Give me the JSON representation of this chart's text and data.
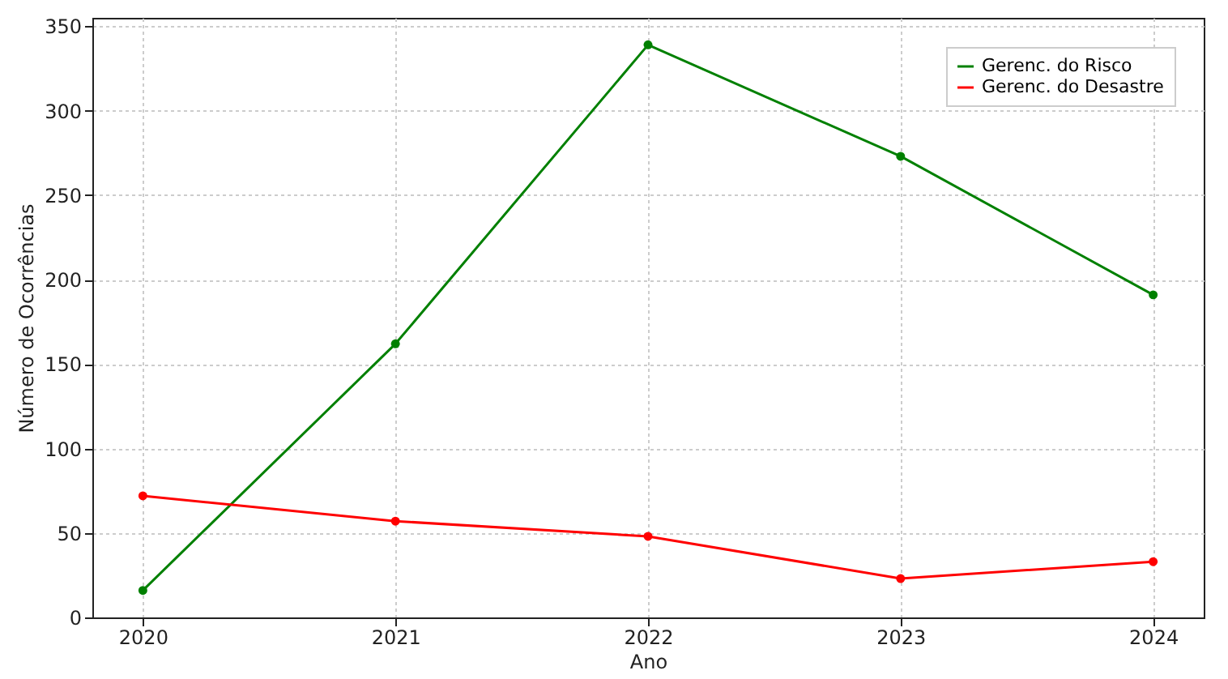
{
  "chart_data": {
    "type": "line",
    "xlabel": "Ano",
    "ylabel": "Número de Ocorrências",
    "x": [
      2020,
      2021,
      2022,
      2023,
      2024
    ],
    "series": [
      {
        "name": "Gerenc. do Risco",
        "color": "#008000",
        "values": [
          16,
          162,
          339,
          273,
          191
        ]
      },
      {
        "name": "Gerenc. do Desastre",
        "color": "#ff0000",
        "values": [
          72,
          57,
          48,
          23,
          33
        ]
      }
    ],
    "xlim": [
      2019.8,
      2024.2
    ],
    "xticks": [
      2020,
      2021,
      2022,
      2023,
      2024
    ],
    "ylim": [
      0,
      355
    ],
    "yticks": [
      0,
      50,
      100,
      150,
      200,
      250,
      300,
      350
    ],
    "grid": true,
    "legend": "top right",
    "marker": "circle",
    "line_style": "solid"
  }
}
